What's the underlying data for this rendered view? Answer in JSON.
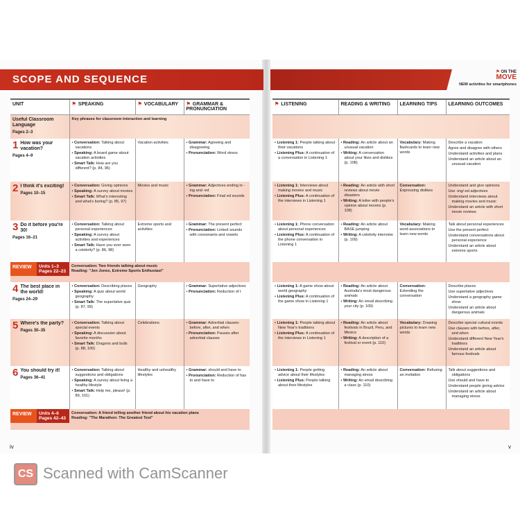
{
  "title": "SCOPE AND SEQUENCE",
  "on_the_move": {
    "line1": "ON THE",
    "line2": "MOVE",
    "subtitle": "NEW activities for smartphones"
  },
  "left_headers": [
    "UNIT",
    "SPEAKING",
    "VOCABULARY",
    "GRAMMAR & PRONUNCIATION"
  ],
  "right_headers": [
    "LISTENING",
    "READING & WRITING",
    "LEARNING TIPS",
    "LEARNING OUTCOMES"
  ],
  "rows": [
    {
      "type": "intro",
      "unit": {
        "title": "Useful Classroom Language",
        "pages": "Pages 2–3"
      },
      "speaking_text": "Key phrases for classroom interaction and learning"
    },
    {
      "type": "unit",
      "tint": false,
      "unit": {
        "num": "1",
        "title": "How was your vacation?",
        "pages": "Pages 4–9"
      },
      "speaking": [
        "Conversation: Talking about vacations",
        "Speaking: A board game about vacation activities",
        "Smart Talk: How are you different? (p. 84, 96)"
      ],
      "vocabulary": "Vacation activities",
      "grammar": [
        "Grammar: Agreeing and disagreeing",
        "Pronunciation: Word stress"
      ],
      "listening": [
        "Listening 1: People talking about their vacations",
        "Listening Plus: A continuation of a conversation in Listening 1"
      ],
      "reading": [
        "Reading: An article about an unusual vacation",
        "Writing: A conversation about your likes and dislikes (p. 108)"
      ],
      "tips": "Vocabulary: Making flashcards to learn new words",
      "outcomes": [
        "Describe a vacation",
        "Agree and disagree with others",
        "Understand activities and plans",
        "Understand an article about an unusual vacation"
      ]
    },
    {
      "type": "unit",
      "tint": true,
      "unit": {
        "num": "2",
        "title": "I think it's exciting!",
        "pages": "Pages 10–15"
      },
      "speaking": [
        "Conversation: Giving opinions",
        "Speaking: A survey about movies",
        "Smart Talk: What's interesting and what's boring? (p. 85, 97)"
      ],
      "vocabulary": "Movies and music",
      "grammar": [
        "Grammar: Adjectives ending in -ing and -ed",
        "Pronunciation: Final ed sounds"
      ],
      "listening": [
        "Listening 1: Interviews about making movies and music",
        "Listening Plus: A continuation of the interviews in Listening 1"
      ],
      "reading": [
        "Reading: An article with short reviews about movie disasters",
        "Writing: A letter with people's opinion about movies (p. 108)"
      ],
      "tips": "Conversation: Expressing dislikes",
      "outcomes": [
        "Understand and give opinions",
        "Use -ing/-ed adjectives",
        "Understand interviews about making movies and music",
        "Understand an article with short movie reviews"
      ]
    },
    {
      "type": "unit",
      "tint": false,
      "unit": {
        "num": "3",
        "title": "Do it before you're 30!",
        "pages": "Pages 16–21"
      },
      "speaking": [
        "Conversation: Talking about personal experiences",
        "Speaking: A survey about activities and experiences",
        "Smart Talk: Have you ever seen a celebrity? (p. 86, 98)"
      ],
      "vocabulary": "Extreme sports and activities",
      "grammar": [
        "Grammar: The present perfect",
        "Pronunciation: Linked sounds with consonants and vowels"
      ],
      "listening": [
        "Listening 1: Phone conversation about personal experiences",
        "Listening Plus: A continuation of the phone conversation in Listening 1"
      ],
      "reading": [
        "Reading: An article about BASE jumping",
        "Writing: A celebrity interview (p. 109)"
      ],
      "tips": "Vocabulary: Making word associations to learn new words",
      "outcomes": [
        "Talk about personal experiences",
        "Use the present perfect",
        "Understand conversations about personal experience",
        "Understand an article about extreme sports"
      ]
    },
    {
      "type": "review",
      "label": "REVIEW",
      "units": "Units 1–3",
      "pages": "Pages 22–23",
      "lines": [
        "Conversation: Two friends talking about music",
        "Reading: \"Jen Jones, Extreme Sports Enthusiast\""
      ]
    },
    {
      "type": "unit",
      "tint": false,
      "unit": {
        "num": "4",
        "title": "The best place in the world!",
        "pages": "Pages 24–29"
      },
      "speaking": [
        "Conversation: Describing places",
        "Speaking: A quiz about world geography",
        "Smart Talk: The superlative quiz (p. 87, 99)"
      ],
      "vocabulary": "Geography",
      "grammar": [
        "Grammar: Superlative adjectives",
        "Pronunciation: Reduction of t"
      ],
      "listening": [
        "Listening 1: A game show about world geography",
        "Listening Plus: A continuation of the game show in Listening 1"
      ],
      "reading": [
        "Reading: An article about Australia's most dangerous animals",
        "Writing: An email describing your city (p. 109)"
      ],
      "tips": "Conversation: Extending the conversation",
      "outcomes": [
        "Describe places",
        "Use superlative adjectives",
        "Understand a geography game show",
        "Understand an article about dangerous animals"
      ]
    },
    {
      "type": "unit",
      "tint": true,
      "unit": {
        "num": "5",
        "title": "Where's the party?",
        "pages": "Pages 30–35"
      },
      "speaking": [
        "Conversation: Talking about special events",
        "Speaking: A discussion about favorite months",
        "Smart Talk: Dragons and bulls (p. 88, 100)"
      ],
      "vocabulary": "Celebrations",
      "grammar": [
        "Grammar: Adverbial clauses: before, after, and when",
        "Pronunciation: Pauses after adverbial clauses"
      ],
      "listening": [
        "Listening 1: People talking about New Year's traditions",
        "Listening Plus: A continuation of the interviews in Listening 1"
      ],
      "reading": [
        "Reading: An article about festivals in Brazil, Peru, and Mexico",
        "Writing: A description of a festival or event (p. 110)"
      ],
      "tips": "Vocabulary: Drawing pictures to learn new words",
      "outcomes": [
        "Describe special cultural events",
        "Use clauses with before, after, and when",
        "Understand different New Year's traditions",
        "Understand an article about famous festivals"
      ]
    },
    {
      "type": "unit",
      "tint": false,
      "unit": {
        "num": "6",
        "title": "You should try it!",
        "pages": "Pages 36–41"
      },
      "speaking": [
        "Conversation: Talking about suggestions and obligations",
        "Speaking: A survey about living a healthy lifestyle",
        "Smart Talk: Help me, please! (p. 89, 101)"
      ],
      "vocabulary": "Healthy and unhealthy lifestyles",
      "grammar": [
        "Grammar: should and have to",
        "Pronunciation: Reduction of has to and have to"
      ],
      "listening": [
        "Listening 1: People getting advice about their lifestyles",
        "Listening Plus: People talking about their lifestyles"
      ],
      "reading": [
        "Reading: An article about managing stress",
        "Writing: An email describing a class (p. 110)"
      ],
      "tips": "Conversation: Refusing an invitation",
      "outcomes": [
        "Talk about suggestions and obligations",
        "Use should and have to",
        "Understand people giving advice",
        "Understand an article about managing stress"
      ]
    },
    {
      "type": "review",
      "label": "REVIEW",
      "units": "Units 4–6",
      "pages": "Pages 42–43",
      "lines": [
        "Conversation: A friend telling another friend about his vacation plans",
        "Reading: \"The Marathon: The Greatest Test\""
      ]
    }
  ],
  "page_numbers": {
    "left": "iv",
    "right": "v"
  },
  "watermark": {
    "logo": "CS",
    "text": "Scanned with CamScanner"
  },
  "colors": {
    "accent": "#c8301e",
    "tint": "#f6cfc0"
  }
}
